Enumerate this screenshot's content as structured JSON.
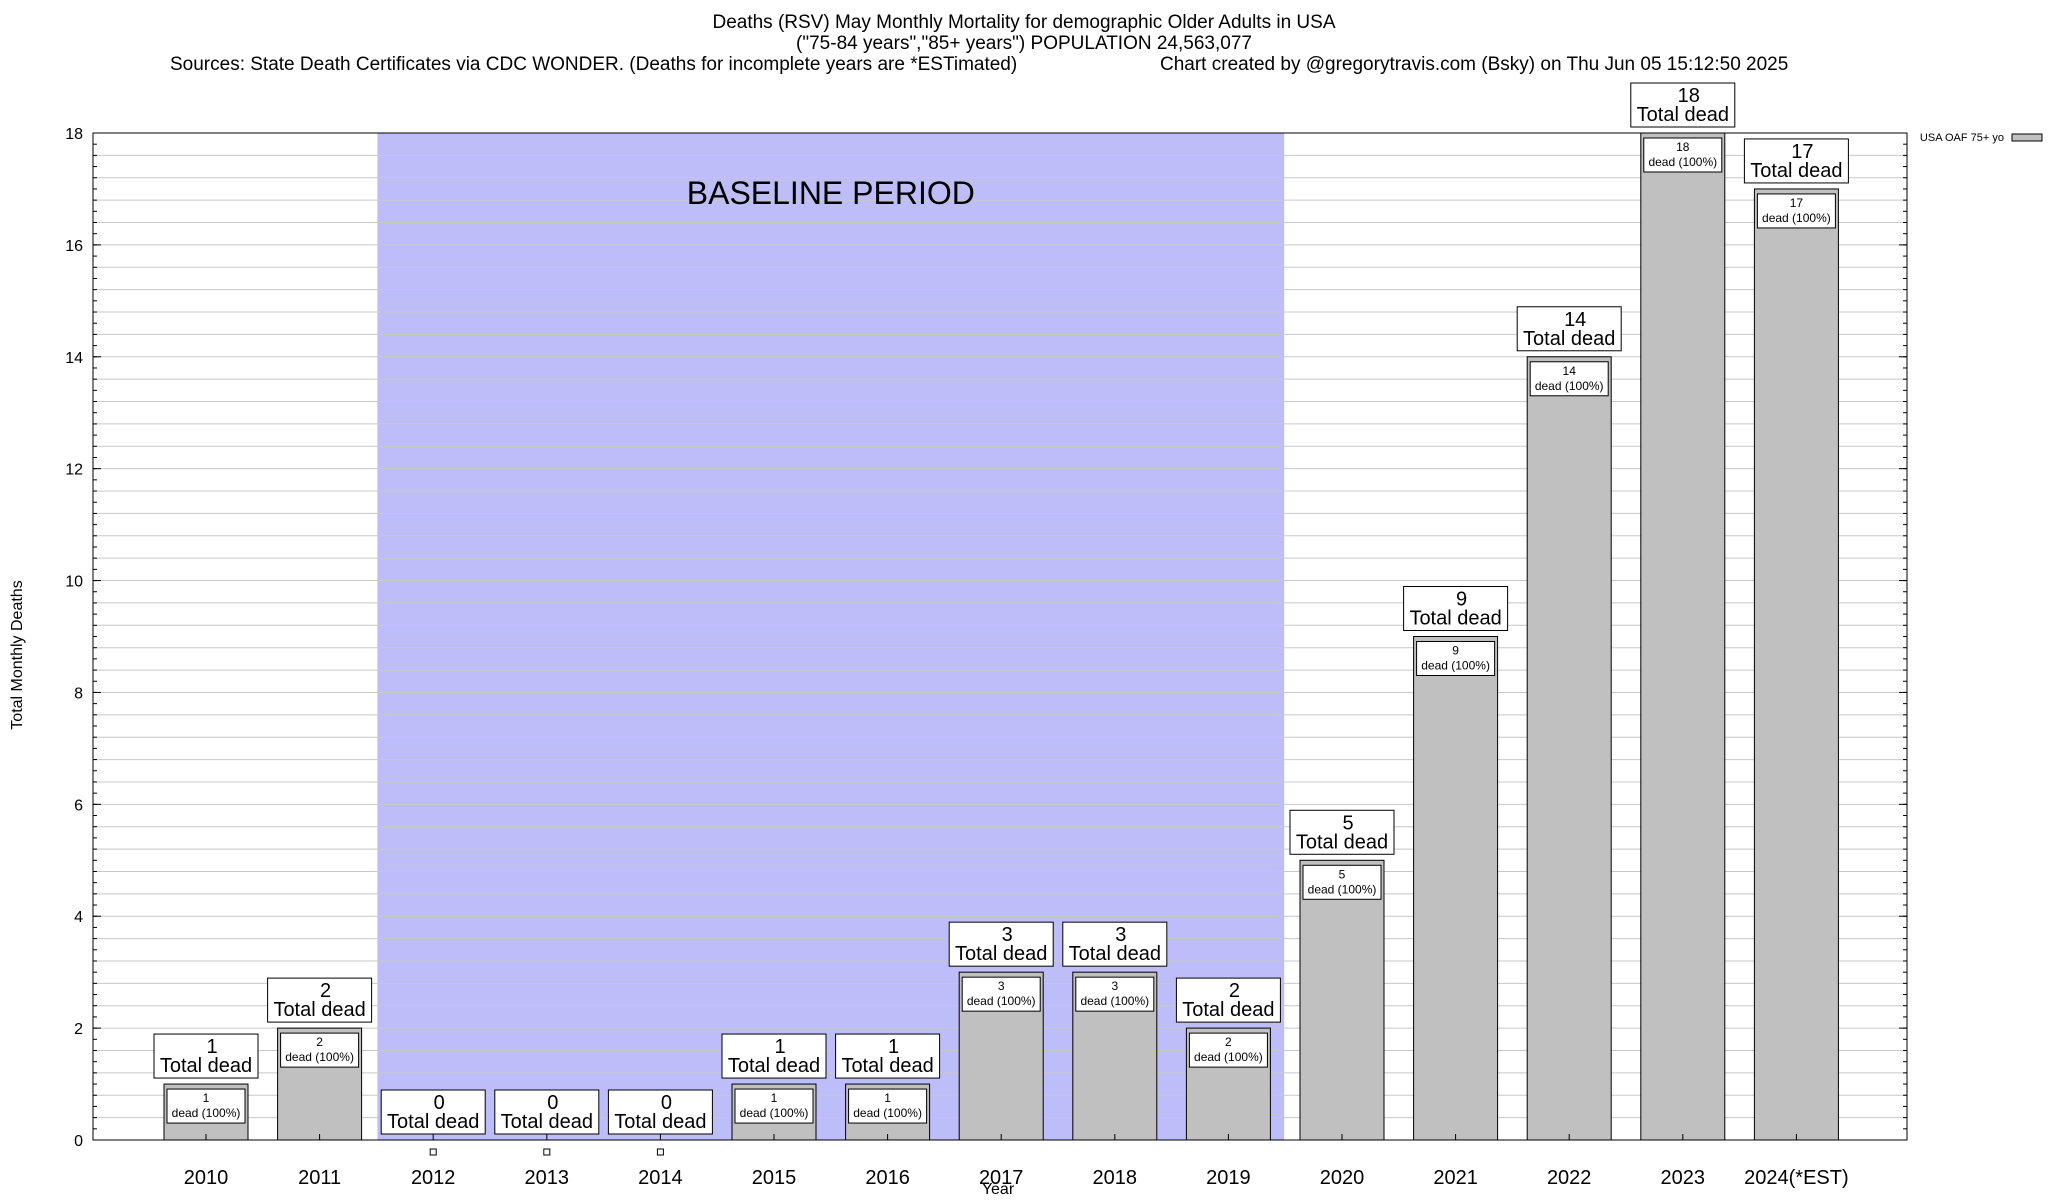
{
  "title": {
    "line1": "Deaths (RSV) May Monthly Mortality for demographic Older Adults in USA",
    "line2": "(\"75-84 years\",\"85+ years\") POPULATION 24,563,077",
    "sources": "Sources: State Death Certificates via CDC WONDER. (Deaths for incomplete years are *ESTimated)",
    "credit": "Chart created by @gregorytravis.com (Bsky) on Thu Jun 05 15:12:50 2025"
  },
  "chart_data": {
    "type": "bar",
    "categories": [
      "2010",
      "2011",
      "2012",
      "2013",
      "2014",
      "2015",
      "2016",
      "2017",
      "2018",
      "2019",
      "2020",
      "2021",
      "2022",
      "2023",
      "2024(*EST)"
    ],
    "series": [
      {
        "name": "USA OAF 75+ yo",
        "values": [
          1,
          2,
          0,
          0,
          0,
          1,
          1,
          3,
          3,
          2,
          5,
          9,
          14,
          18,
          17
        ],
        "color": "#c0c0c0"
      }
    ],
    "xlabel": "Year",
    "ylabel": "Total Monthly Deaths",
    "ylim": [
      0,
      18
    ],
    "yticks": [
      0,
      2,
      4,
      6,
      8,
      10,
      12,
      14,
      16,
      18
    ],
    "grid": true,
    "legend_position": "top-right",
    "top_label_suffix": "Total dead",
    "inner_label_suffix": "dead (100%)",
    "baseline": {
      "label": "BASELINE PERIOD",
      "from": "2012",
      "to": "2019",
      "color": "#bdbdfa"
    }
  }
}
